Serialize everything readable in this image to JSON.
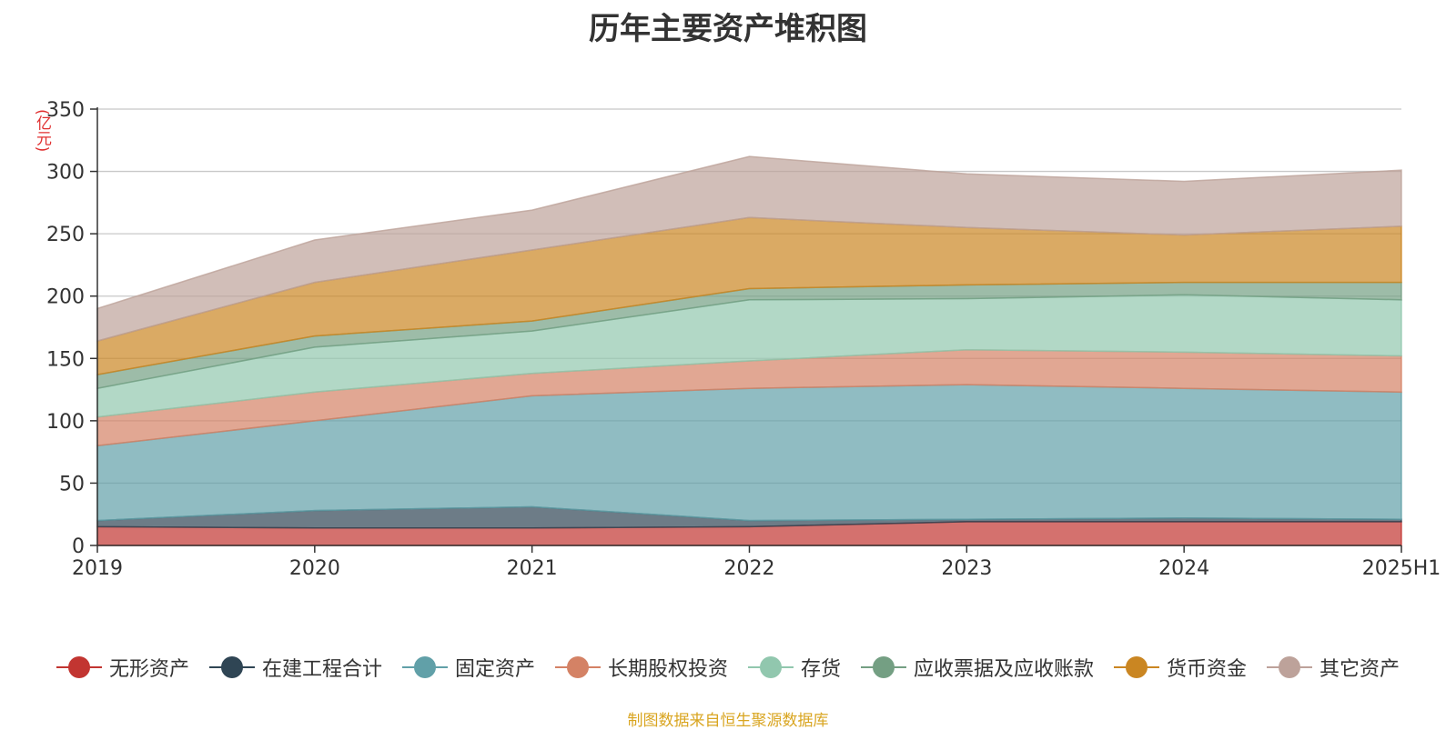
{
  "title": "历年主要资产堆积图",
  "source_note": "制图数据来自恒生聚源数据库",
  "chart_data": {
    "type": "area",
    "stacked": true,
    "title": "历年主要资产堆积图",
    "ylabel": "(亿元)",
    "xlabel": "",
    "ylim": [
      0,
      350
    ],
    "yticks": [
      0,
      50,
      100,
      150,
      200,
      250,
      300,
      350
    ],
    "grid": true,
    "legend_position": "bottom",
    "categories": [
      "2019",
      "2020",
      "2021",
      "2022",
      "2023",
      "2024",
      "2025H1"
    ],
    "series": [
      {
        "name": "无形资产",
        "color": "#c23531",
        "values": [
          15,
          14,
          14,
          15,
          19,
          19,
          19
        ]
      },
      {
        "name": "在建工程合计",
        "color": "#2f4554",
        "values": [
          5,
          14,
          17,
          5,
          2,
          3,
          2
        ]
      },
      {
        "name": "固定资产",
        "color": "#61a0a8",
        "values": [
          60,
          72,
          89,
          106,
          108,
          104,
          102
        ]
      },
      {
        "name": "长期股权投资",
        "color": "#d48265",
        "values": [
          23,
          23,
          18,
          22,
          28,
          29,
          29
        ]
      },
      {
        "name": "存货",
        "color": "#91c7ae",
        "values": [
          23,
          36,
          34,
          49,
          41,
          46,
          45
        ]
      },
      {
        "name": "应收票据及应收账款",
        "color": "#749f83",
        "values": [
          11,
          9,
          8,
          9,
          11,
          10,
          14
        ]
      },
      {
        "name": "货币资金",
        "color": "#ca8622",
        "values": [
          27,
          43,
          57,
          57,
          46,
          38,
          45
        ]
      },
      {
        "name": "其它资产",
        "color": "#bda29a",
        "values": [
          26,
          34,
          32,
          49,
          43,
          43,
          45
        ]
      }
    ]
  }
}
